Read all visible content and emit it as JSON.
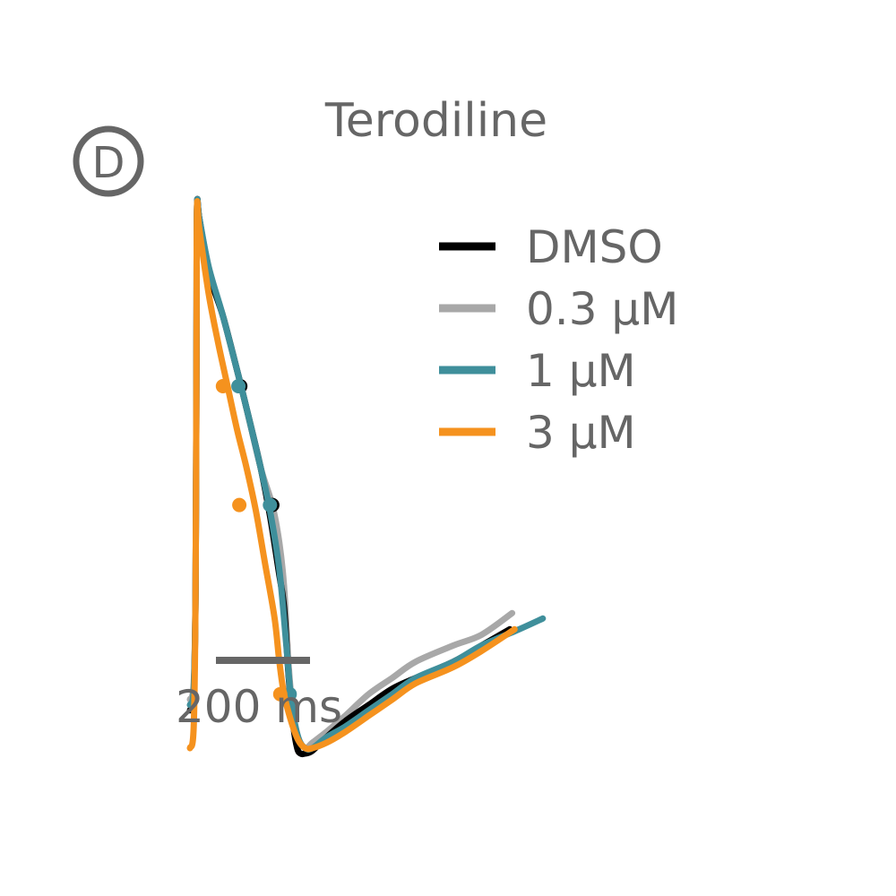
{
  "panel_label": "D",
  "chart_data": {
    "type": "line",
    "title": "Terodiline",
    "xlabel": "",
    "ylabel": "",
    "grid": false,
    "legend_position": "top-right",
    "scale_bar": {
      "length_ms": 200,
      "label": "200 ms"
    },
    "series": [
      {
        "name": "DMSO",
        "color": "#000000",
        "x": [
          0,
          8,
          12,
          14,
          15,
          20,
          40,
          70,
          100,
          120,
          150,
          170,
          190,
          200,
          210,
          220,
          228,
          235,
          245,
          260,
          290,
          330,
          380,
          430,
          480,
          560,
          620,
          680
        ],
        "y": [
          0.07,
          0.1,
          0.3,
          0.75,
          1.0,
          0.98,
          0.88,
          0.8,
          0.7,
          0.63,
          0.52,
          0.43,
          0.32,
          0.26,
          0.13,
          0.04,
          0.0,
          -0.01,
          -0.01,
          -0.005,
          0.02,
          0.05,
          0.08,
          0.11,
          0.13,
          0.16,
          0.19,
          0.22
        ],
        "markers": [
          [
            107,
            0.67
          ],
          [
            175,
            0.45
          ]
        ]
      },
      {
        "name": "0.3 µM",
        "color": "#a8a8a8",
        "x": [
          0,
          8,
          12,
          14,
          15,
          20,
          40,
          70,
          100,
          120,
          150,
          175,
          190,
          200,
          210,
          220,
          230,
          245,
          260,
          290,
          330,
          380,
          430,
          480,
          560,
          620,
          685
        ],
        "y": [
          0.09,
          0.12,
          0.3,
          0.75,
          1.0,
          0.98,
          0.89,
          0.8,
          0.7,
          0.63,
          0.52,
          0.45,
          0.38,
          0.3,
          0.15,
          0.06,
          0.02,
          0.0,
          0.01,
          0.03,
          0.06,
          0.1,
          0.13,
          0.16,
          0.19,
          0.21,
          0.25
        ],
        "markers": [
          [
            104,
            0.67
          ],
          [
            175,
            0.45
          ]
        ]
      },
      {
        "name": "1 µM",
        "color": "#3f8f9b",
        "x": [
          0,
          8,
          12,
          14,
          15,
          20,
          40,
          70,
          100,
          120,
          150,
          170,
          190,
          205,
          215,
          230,
          245,
          260,
          290,
          330,
          380,
          430,
          480,
          560,
          620,
          700,
          750
        ],
        "y": [
          0.08,
          0.11,
          0.3,
          0.75,
          1.0,
          0.98,
          0.89,
          0.8,
          0.7,
          0.63,
          0.52,
          0.44,
          0.33,
          0.19,
          0.09,
          0.02,
          0.0,
          0.0,
          0.02,
          0.04,
          0.07,
          0.1,
          0.13,
          0.16,
          0.19,
          0.22,
          0.24
        ],
        "markers": [
          [
            103,
            0.67
          ],
          [
            170,
            0.45
          ],
          [
            212,
            0.1
          ]
        ]
      },
      {
        "name": "3 µM",
        "color": "#f5921e",
        "x": [
          0,
          8,
          12,
          14,
          15,
          20,
          40,
          60,
          80,
          100,
          120,
          140,
          160,
          180,
          190,
          200,
          215,
          230,
          245,
          260,
          290,
          330,
          380,
          430,
          480,
          560,
          620,
          690
        ],
        "y": [
          0.0,
          0.04,
          0.3,
          0.75,
          1.0,
          0.96,
          0.84,
          0.75,
          0.67,
          0.59,
          0.52,
          0.44,
          0.34,
          0.24,
          0.16,
          0.1,
          0.05,
          0.015,
          0.0,
          0.0,
          0.01,
          0.03,
          0.06,
          0.09,
          0.12,
          0.15,
          0.18,
          0.22
        ],
        "markers": [
          [
            70,
            0.67
          ],
          [
            105,
            0.45
          ],
          [
            192,
            0.1
          ]
        ]
      }
    ]
  }
}
